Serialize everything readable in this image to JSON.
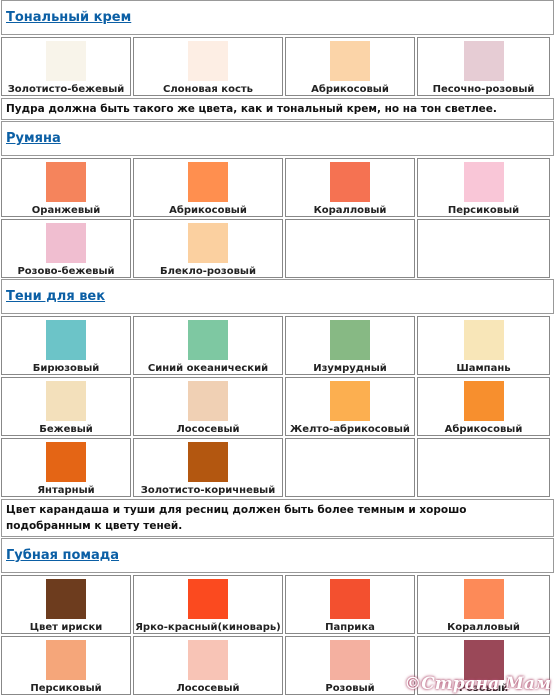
{
  "sections": [
    {
      "title": "Тональный крем",
      "rows": [
        [
          {
            "label": "Золотисто-бежевый",
            "color": "#f8f4ea"
          },
          {
            "label": "Слоновая кость",
            "color": "#fdeee4"
          },
          {
            "label": "Абрикосовый",
            "color": "#fbd4a8"
          },
          {
            "label": "Песочно-розовый",
            "color": "#e6ccd4"
          }
        ]
      ],
      "note": "Пудра должна быть такого же цвета, как и тональный крем, но на тон светлее."
    },
    {
      "title": "Румяна",
      "rows": [
        [
          {
            "label": "Оранжевый",
            "color": "#f5845c"
          },
          {
            "label": "Абрикосовый",
            "color": "#ff8f4f"
          },
          {
            "label": "Коралловый",
            "color": "#f57252"
          },
          {
            "label": "Персиковый",
            "color": "#f9c6d7"
          }
        ],
        [
          {
            "label": "Розово-бежевый",
            "color": "#f0bed0"
          },
          {
            "label": "Блекло-розовый",
            "color": "#fbd0a0"
          },
          null,
          null
        ]
      ]
    },
    {
      "title": "Тени для век",
      "rows": [
        [
          {
            "label": "Бирюзовый",
            "color": "#6cc4c8"
          },
          {
            "label": "Синий океанический",
            "color": "#7ec8a2"
          },
          {
            "label": "Изумрудный",
            "color": "#87b984"
          },
          {
            "label": "Шампань",
            "color": "#f8e6b8"
          }
        ],
        [
          {
            "label": "Бежевый",
            "color": "#f3e0bb"
          },
          {
            "label": "Лососевый",
            "color": "#f0d0b4"
          },
          {
            "label": "Желто-абрикосовый",
            "color": "#fcaf50"
          },
          {
            "label": "Абрикосовый",
            "color": "#f78f2e"
          }
        ],
        [
          {
            "label": "Янтарный",
            "color": "#e46515"
          },
          {
            "label": "Золотисто-коричневый",
            "color": "#b35710"
          },
          null,
          null
        ]
      ],
      "note": "Цвет карандаша и туши для ресниц должен быть более темным и хорошо подобранным к цвету теней."
    },
    {
      "title": "Губная помада",
      "rows": [
        [
          {
            "label": "Цвет ириски",
            "color": "#6d3c1e"
          },
          {
            "label": "Ярко-красный(киноварь)",
            "color": "#fb4a1f"
          },
          {
            "label": "Паприка",
            "color": "#f3502f"
          },
          {
            "label": "Коралловый",
            "color": "#fd8a58"
          }
        ],
        [
          {
            "label": "Персиковый",
            "color": "#f5a67a"
          },
          {
            "label": "Лососевый",
            "color": "#f8c4b6"
          },
          {
            "label": "Розовый",
            "color": "#f4b0a0"
          },
          {
            "label": "Розовый",
            "color": "#9a4858"
          }
        ]
      ]
    }
  ],
  "watermark": "©Страна Мам"
}
